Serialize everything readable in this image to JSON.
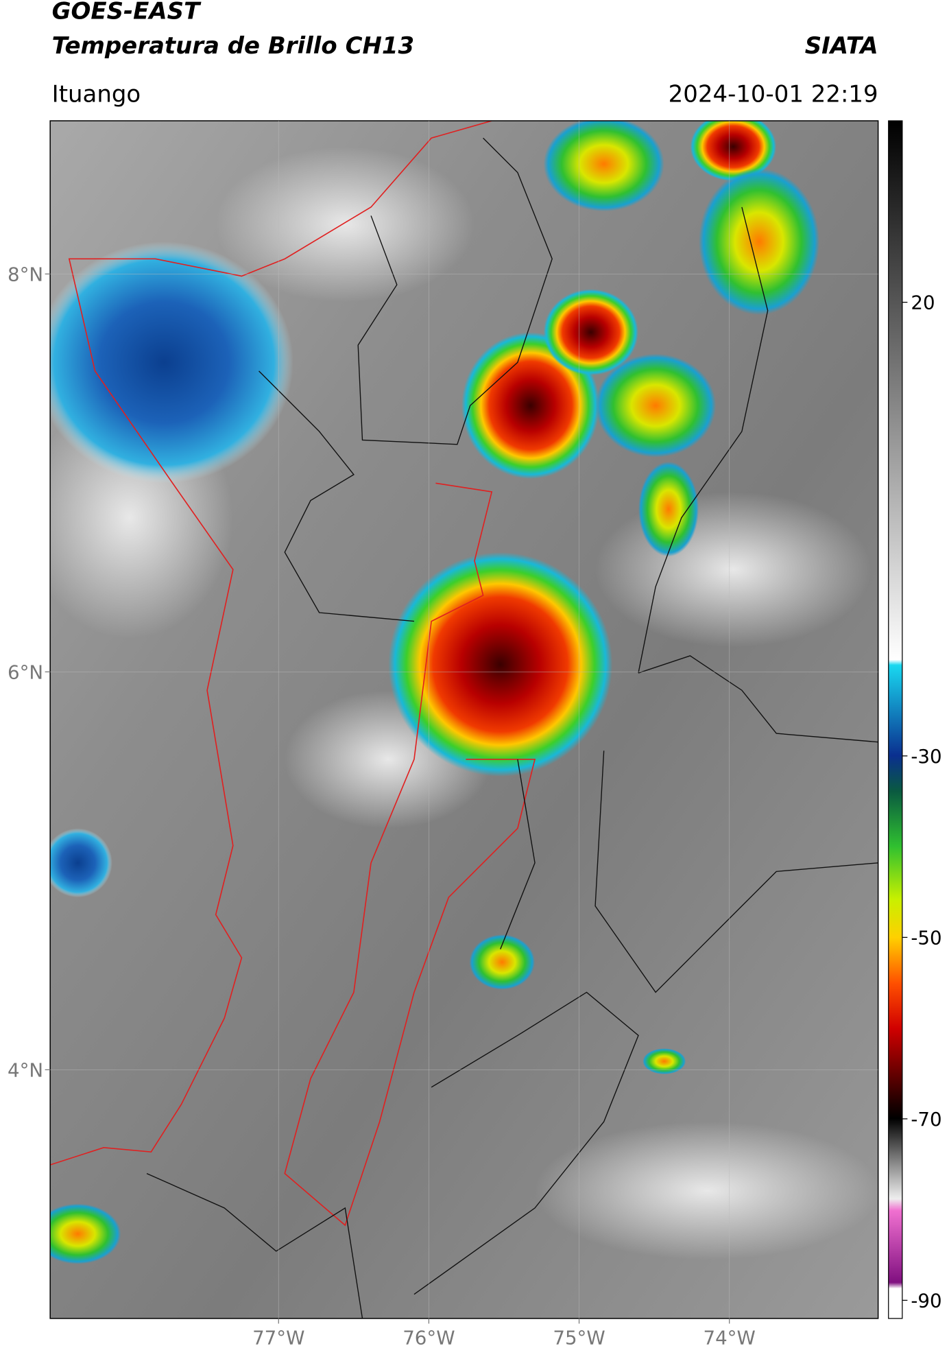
{
  "header": {
    "title_line1": "GOES-EAST",
    "title_line2": "Temperatura de Brillo CH13",
    "agency": "SIATA",
    "location": "Ituango",
    "datetime": "2024-10-01 22:19"
  },
  "map": {
    "lat_range": [
      2.75,
      8.77
    ],
    "lon_range": [
      -78.52,
      -73.01
    ],
    "lat_ticks": [
      {
        "value": 8,
        "label": "8°N"
      },
      {
        "value": 6,
        "label": "6°N"
      },
      {
        "value": 4,
        "label": "4°N"
      }
    ],
    "lon_ticks": [
      {
        "value": -77,
        "label": "77°W"
      },
      {
        "value": -76,
        "label": "76°W"
      },
      {
        "value": -75,
        "label": "75°W"
      },
      {
        "value": -74,
        "label": "74°W"
      }
    ]
  },
  "colorbar": {
    "range": [
      -92,
      40
    ],
    "ticks": [
      20,
      -30,
      -50,
      -70,
      -90
    ]
  }
}
